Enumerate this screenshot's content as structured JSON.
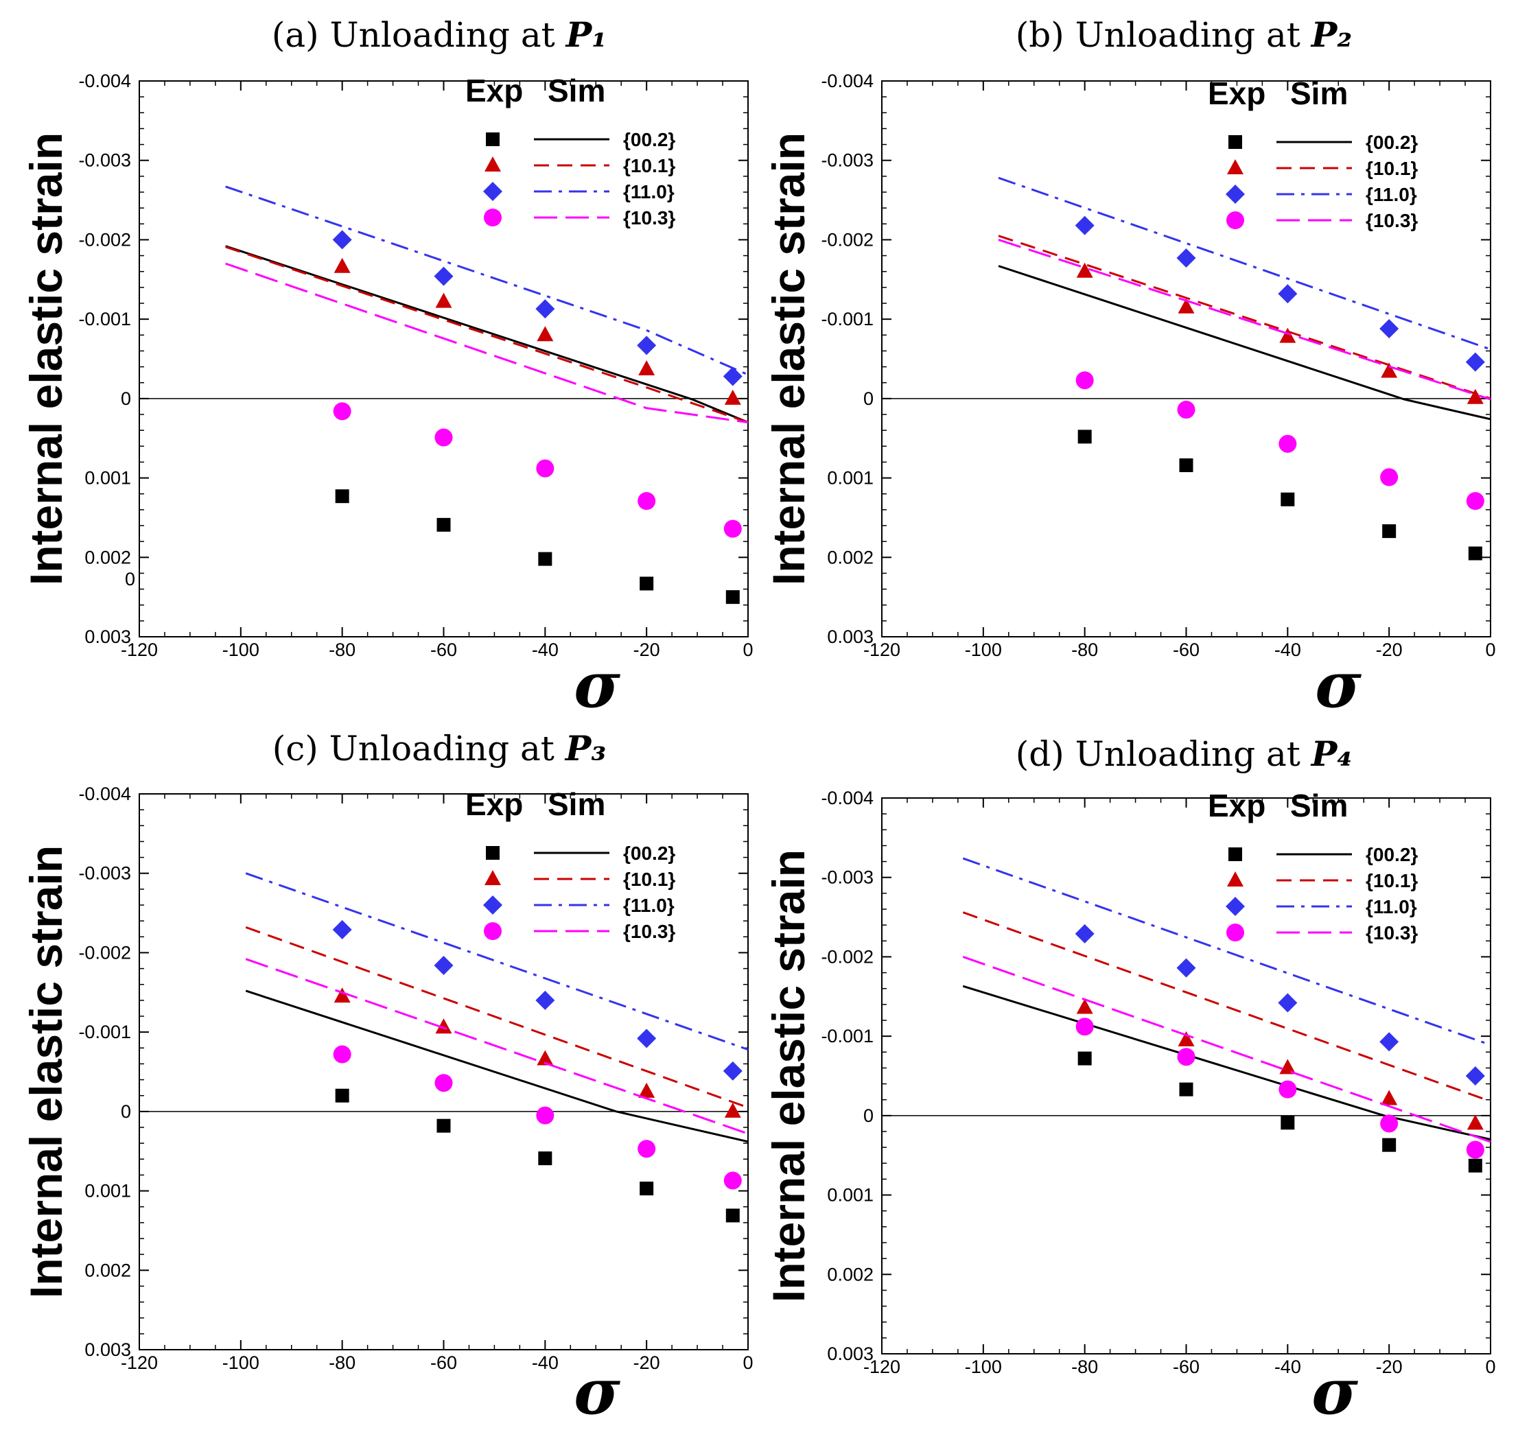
{
  "figure_panels_label": "Four-panel figure: Internal elastic strain vs stress during unloading",
  "chart_data": [
    {
      "type": "scatter",
      "panel_prefix": "(a) Unloading at ",
      "panel_subscript": "P₁",
      "ylabel": "Internal elastic strain",
      "xlabel": "σ",
      "xlim": [
        -120,
        0
      ],
      "ylim": [
        -0.004,
        0.003
      ],
      "x_ticks": [
        "-120",
        "-100",
        "-80",
        "-60",
        "-40",
        "-20",
        "0"
      ],
      "y_ticks": [
        "-0.004",
        "-0.003",
        "-0.002",
        "-0.001",
        "0",
        "0.001",
        "0.002",
        "0.003"
      ],
      "stray_label": "0",
      "legend_header": [
        "Exp",
        "Sim"
      ],
      "series": [
        {
          "name": "{00.2}",
          "color": "#000000",
          "marker": "square",
          "dash": "solid",
          "exp_x": [
            -80,
            -60,
            -40,
            -20,
            -3
          ],
          "exp_y": [
            0.00123,
            0.00159,
            0.00202,
            0.00233,
            0.0025
          ],
          "sim_x": [
            -103,
            -11,
            0
          ],
          "sim_y": [
            -0.00192,
            1e-05,
            0.0003
          ]
        },
        {
          "name": "{10.1}",
          "color": "#cc0000",
          "marker": "triangle",
          "dash": "dashed",
          "exp_x": [
            -80,
            -60,
            -40,
            -20,
            -3
          ],
          "exp_y": [
            -0.00166,
            -0.00122,
            -0.0008,
            -0.00037,
            0.0
          ],
          "sim_x": [
            -103,
            -20,
            0
          ],
          "sim_y": [
            -0.00191,
            -0.00014,
            0.0003
          ]
        },
        {
          "name": "{11.0}",
          "color": "#3333ee",
          "marker": "diamond",
          "dash": "dashdot",
          "exp_x": [
            -80,
            -60,
            -40,
            -20,
            -3
          ],
          "exp_y": [
            -0.002,
            -0.00154,
            -0.00113,
            -0.00067,
            -0.00028
          ],
          "sim_x": [
            -103,
            -20,
            0
          ],
          "sim_y": [
            -0.00267,
            -0.00086,
            -0.0003
          ]
        },
        {
          "name": "{10.3}",
          "color": "#ff00ff",
          "marker": "circle",
          "dash": "longdash",
          "exp_x": [
            -80,
            -60,
            -40,
            -20,
            -3
          ],
          "exp_y": [
            0.00016,
            0.00049,
            0.00088,
            0.00129,
            0.00164
          ],
          "sim_x": [
            -103,
            -20,
            0
          ],
          "sim_y": [
            -0.0017,
            0.00012,
            0.0003
          ]
        }
      ]
    },
    {
      "type": "scatter",
      "panel_prefix": "(b) Unloading at ",
      "panel_subscript": "P₂",
      "ylabel": "Internal elastic strain",
      "xlabel": "σ",
      "xlim": [
        -120,
        0
      ],
      "ylim": [
        -0.004,
        0.003
      ],
      "x_ticks": [
        "-120",
        "-100",
        "-80",
        "-60",
        "-40",
        "-20",
        "0"
      ],
      "y_ticks": [
        "-0.004",
        "-0.003",
        "-0.002",
        "-0.001",
        "0",
        "0.001",
        "0.002",
        "0.003"
      ],
      "stray_label": "",
      "legend_header": [
        "Exp",
        "Sim"
      ],
      "series": [
        {
          "name": "{00.2}",
          "color": "#000000",
          "marker": "square",
          "dash": "solid",
          "exp_x": [
            -80,
            -60,
            -40,
            -20,
            -3
          ],
          "exp_y": [
            0.00048,
            0.00084,
            0.00127,
            0.00167,
            0.00195
          ],
          "sim_x": [
            -97,
            -17,
            0
          ],
          "sim_y": [
            -0.00167,
            1e-05,
            0.00026
          ]
        },
        {
          "name": "{10.1}",
          "color": "#cc0000",
          "marker": "triangle",
          "dash": "dashed",
          "exp_x": [
            -80,
            -60,
            -40,
            -20,
            -3
          ],
          "exp_y": [
            -0.0016,
            -0.00115,
            -0.00078,
            -0.00034,
            -1e-05
          ],
          "sim_x": [
            -97,
            0
          ],
          "sim_y": [
            -0.00205,
            0.0
          ]
        },
        {
          "name": "{11.0}",
          "color": "#3333ee",
          "marker": "diamond",
          "dash": "dashdot",
          "exp_x": [
            -80,
            -60,
            -40,
            -20,
            -3
          ],
          "exp_y": [
            -0.00218,
            -0.00177,
            -0.00132,
            -0.00088,
            -0.00046
          ],
          "sim_x": [
            -97,
            0
          ],
          "sim_y": [
            -0.00278,
            -0.00062
          ]
        },
        {
          "name": "{10.3}",
          "color": "#ff00ff",
          "marker": "circle",
          "dash": "longdash",
          "exp_x": [
            -80,
            -60,
            -40,
            -20,
            -3
          ],
          "exp_y": [
            -0.00023,
            0.00014,
            0.00057,
            0.00099,
            0.00129
          ],
          "sim_x": [
            -97,
            0
          ],
          "sim_y": [
            -0.002,
            1e-05
          ]
        }
      ]
    },
    {
      "type": "scatter",
      "panel_prefix": "(c) Unloading at ",
      "panel_subscript": "P₃",
      "ylabel": "Internal elastic strain",
      "xlabel": "σ",
      "xlim": [
        -120,
        0
      ],
      "ylim": [
        -0.004,
        0.003
      ],
      "x_ticks": [
        "-120",
        "-100",
        "-80",
        "-60",
        "-40",
        "-20",
        "0"
      ],
      "y_ticks": [
        "-0.004",
        "-0.003",
        "-0.002",
        "-0.001",
        "0",
        "0.001",
        "0.002",
        "0.003"
      ],
      "stray_label": "",
      "legend_header": [
        "Exp",
        "Sim"
      ],
      "series": [
        {
          "name": "{00.2}",
          "color": "#000000",
          "marker": "square",
          "dash": "solid",
          "exp_x": [
            -80,
            -60,
            -40,
            -20,
            -3
          ],
          "exp_y": [
            -0.0002,
            0.00018,
            0.00059,
            0.00097,
            0.00131
          ],
          "sim_x": [
            -99,
            -26,
            0
          ],
          "sim_y": [
            -0.00152,
            0.0,
            0.00038
          ]
        },
        {
          "name": "{10.1}",
          "color": "#cc0000",
          "marker": "triangle",
          "dash": "dashed",
          "exp_x": [
            -80,
            -60,
            -40,
            -20,
            -3
          ],
          "exp_y": [
            -0.00145,
            -0.00106,
            -0.00066,
            -0.00025,
            0.0
          ],
          "sim_x": [
            -99,
            0
          ],
          "sim_y": [
            -0.00232,
            -5e-05
          ]
        },
        {
          "name": "{11.0}",
          "color": "#3333ee",
          "marker": "diamond",
          "dash": "dashdot",
          "exp_x": [
            -80,
            -60,
            -40,
            -20,
            -3
          ],
          "exp_y": [
            -0.00229,
            -0.00184,
            -0.0014,
            -0.00092,
            -0.00051
          ],
          "sim_x": [
            -99,
            0
          ],
          "sim_y": [
            -0.003,
            -0.00078
          ]
        },
        {
          "name": "{10.3}",
          "color": "#ff00ff",
          "marker": "circle",
          "dash": "longdash",
          "exp_x": [
            -80,
            -60,
            -40,
            -20,
            -3
          ],
          "exp_y": [
            -0.00072,
            -0.00036,
            5e-05,
            0.00047,
            0.00087
          ],
          "sim_x": [
            -99,
            0
          ],
          "sim_y": [
            -0.00192,
            0.00028
          ]
        }
      ]
    },
    {
      "type": "scatter",
      "panel_prefix": "(d) Unloading at ",
      "panel_subscript": "P₄",
      "ylabel": "Internal elastic strain",
      "xlabel": "σ",
      "xlim": [
        -120,
        0
      ],
      "ylim": [
        -0.004,
        0.003
      ],
      "x_ticks": [
        "-120",
        "-100",
        "-80",
        "-60",
        "-40",
        "-20",
        "0"
      ],
      "y_ticks": [
        "-0.004",
        "-0.003",
        "-0.002",
        "-0.001",
        "0",
        "0.001",
        "0.002",
        "0.003"
      ],
      "stray_label": "",
      "legend_header": [
        "Exp",
        "Sim"
      ],
      "series": [
        {
          "name": "{00.2}",
          "color": "#000000",
          "marker": "square",
          "dash": "solid",
          "exp_x": [
            -80,
            -60,
            -40,
            -20,
            -3
          ],
          "exp_y": [
            -0.00072,
            -0.00033,
            9e-05,
            0.00037,
            0.00063
          ],
          "sim_x": [
            -104,
            -21,
            0
          ],
          "sim_y": [
            -0.00163,
            0.0,
            0.0003
          ]
        },
        {
          "name": "{10.1}",
          "color": "#cc0000",
          "marker": "triangle",
          "dash": "dashed",
          "exp_x": [
            -80,
            -60,
            -40,
            -20,
            -3
          ],
          "exp_y": [
            -0.00136,
            -0.00095,
            -0.0006,
            -0.00021,
            0.0001
          ],
          "sim_x": [
            -104,
            0
          ],
          "sim_y": [
            -0.00256,
            -0.00018
          ]
        },
        {
          "name": "{11.0}",
          "color": "#3333ee",
          "marker": "diamond",
          "dash": "dashdot",
          "exp_x": [
            -80,
            -60,
            -40,
            -20,
            -3
          ],
          "exp_y": [
            -0.00229,
            -0.00186,
            -0.00142,
            -0.00093,
            -0.0005
          ],
          "sim_x": [
            -104,
            0
          ],
          "sim_y": [
            -0.00324,
            -0.00089
          ]
        },
        {
          "name": "{10.3}",
          "color": "#ff00ff",
          "marker": "circle",
          "dash": "longdash",
          "exp_x": [
            -80,
            -60,
            -40,
            -20,
            -3
          ],
          "exp_y": [
            -0.00112,
            -0.00074,
            -0.00033,
            0.0001,
            0.00043
          ],
          "sim_x": [
            -104,
            0
          ],
          "sim_y": [
            -0.002,
            0.00033
          ]
        }
      ]
    }
  ]
}
